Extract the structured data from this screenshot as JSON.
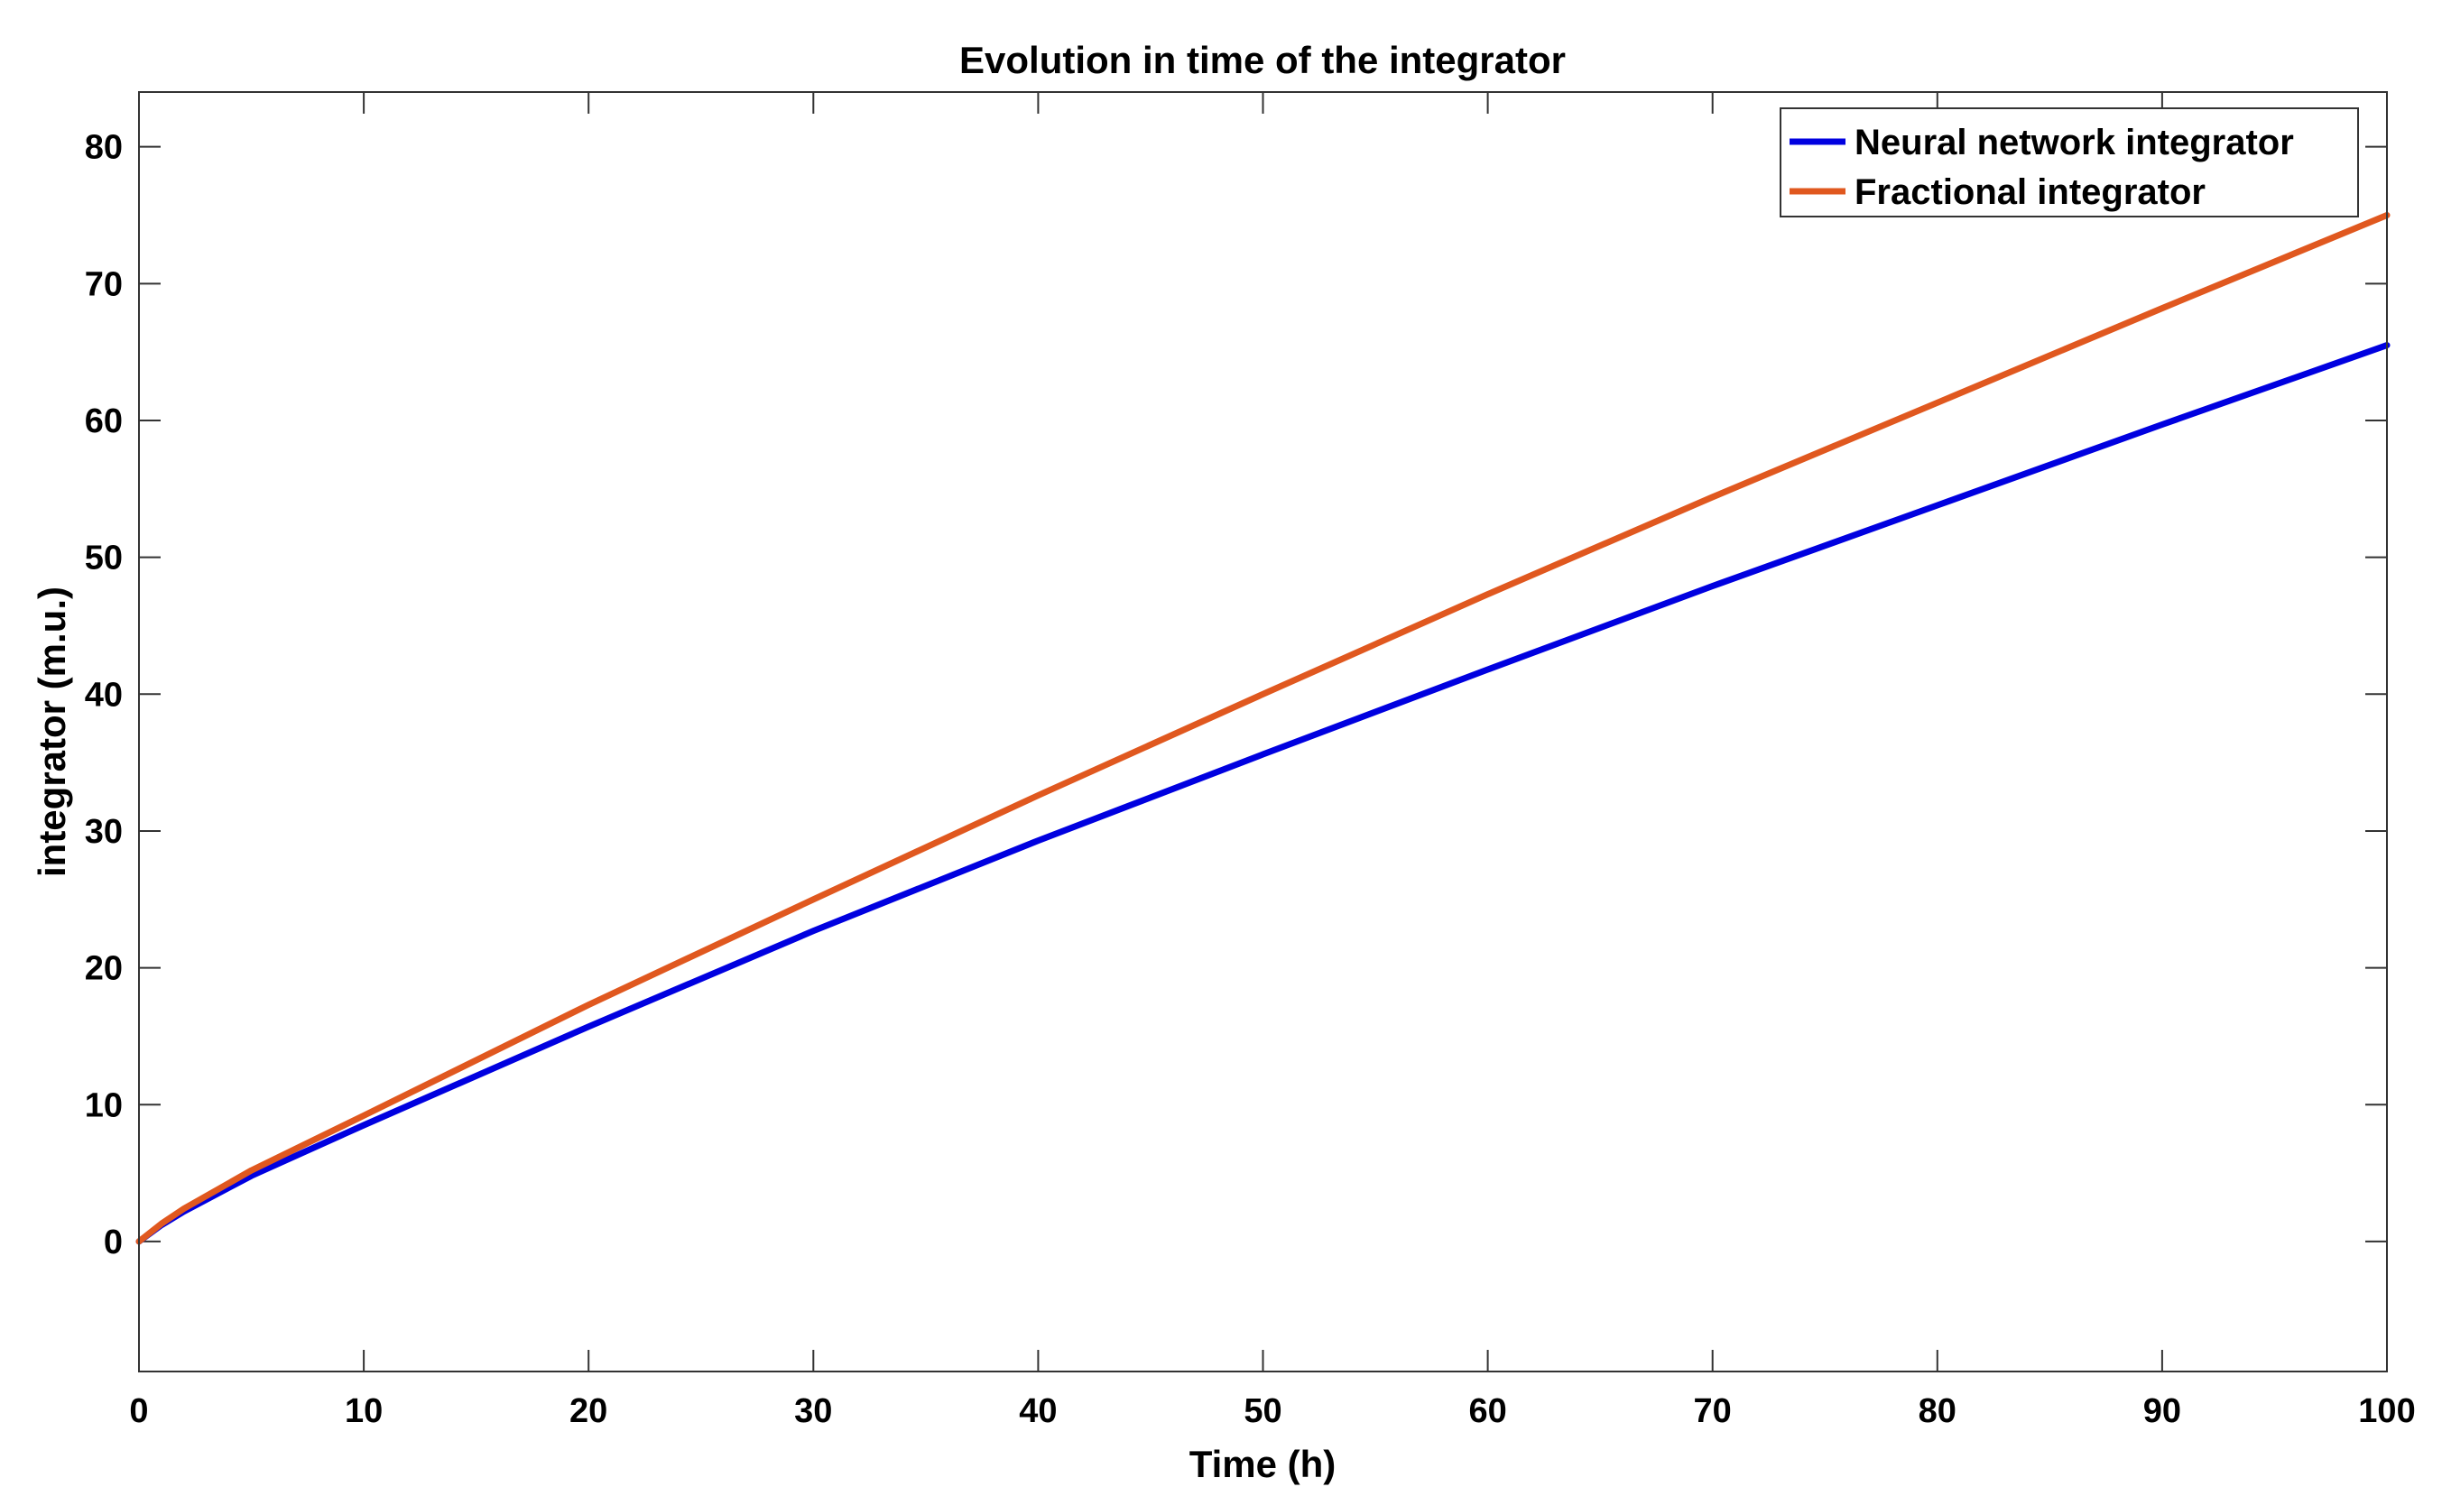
{
  "chart_data": {
    "type": "line",
    "title": "Evolution in time of the integrator",
    "xlabel": "Time (h)",
    "ylabel": "integrator (m.u.)",
    "xlim": [
      0,
      100
    ],
    "ylim": [
      -9.5,
      84
    ],
    "xticks": [
      0,
      10,
      20,
      30,
      40,
      50,
      60,
      70,
      80,
      90,
      100
    ],
    "yticks": [
      0,
      10,
      20,
      30,
      40,
      50,
      60,
      70,
      80
    ],
    "grid": false,
    "legend_position": "top-right",
    "x": [
      0,
      1,
      2,
      5,
      10,
      20,
      30,
      40,
      50,
      60,
      70,
      80,
      90,
      100
    ],
    "series": [
      {
        "name": "Neural network integrator",
        "color": "#0000e0",
        "values": [
          0,
          1.2,
          2.2,
          4.8,
          8.5,
          15.7,
          22.7,
          29.3,
          35.6,
          41.8,
          47.9,
          53.8,
          59.7,
          65.5
        ]
      },
      {
        "name": "Fractional integrator",
        "color": "#e0581f",
        "values": [
          0,
          1.3,
          2.4,
          5.2,
          9.2,
          17.3,
          25.0,
          32.6,
          40.0,
          47.3,
          54.4,
          61.3,
          68.2,
          75.0
        ]
      }
    ]
  }
}
